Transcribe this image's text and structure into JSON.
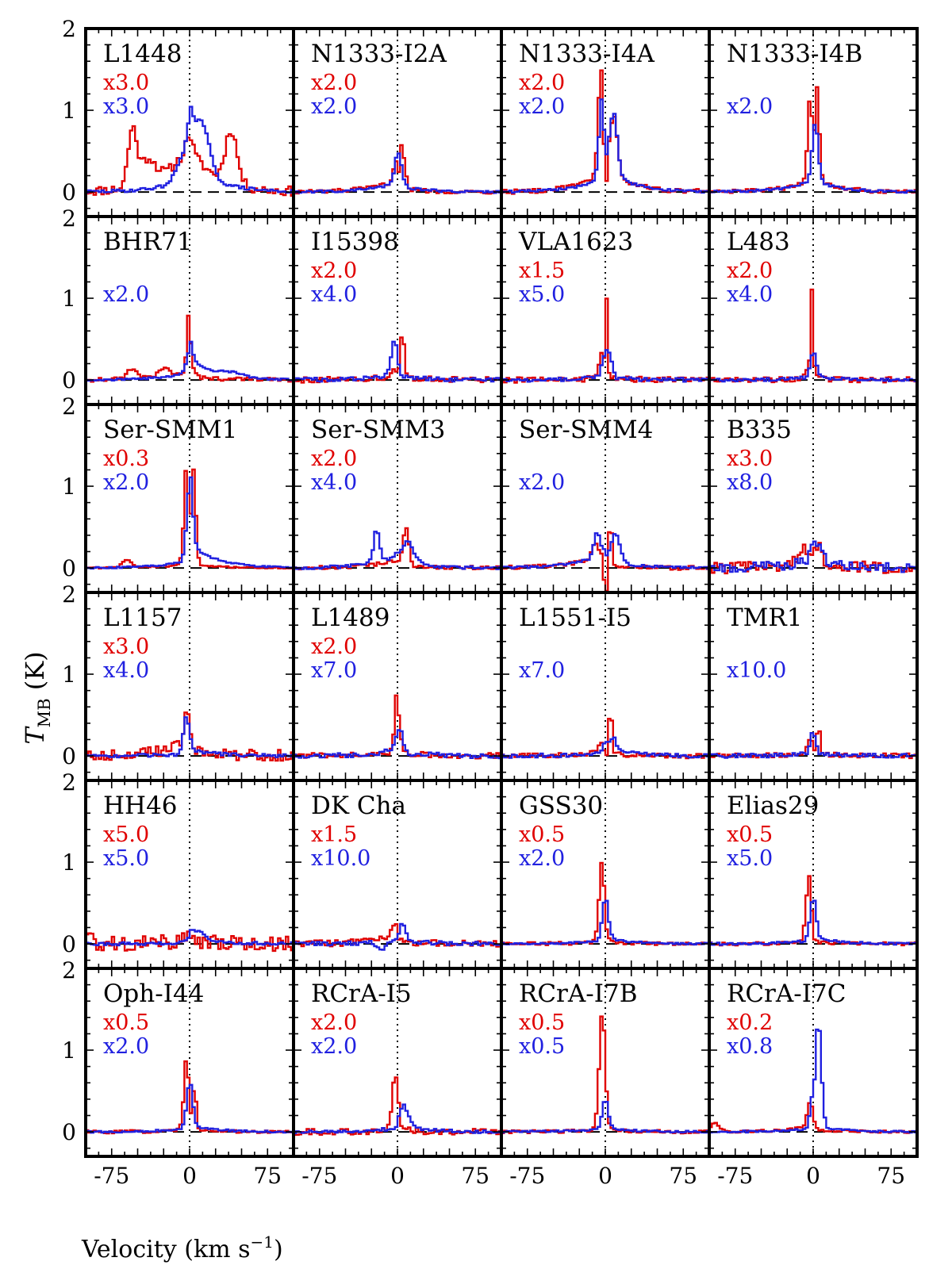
{
  "chart_data": {
    "type": "line",
    "layout": "6x4 grid of step-line spectra",
    "xlabel": "Velocity (km s",
    "xlabel_sup": "−1",
    "xlabel_tail": ")",
    "ylabel_main": "T",
    "ylabel_sub": "MB",
    "ylabel_tail": " (K)",
    "xlim": [
      -100,
      100
    ],
    "ylim": [
      -0.3,
      2.0
    ],
    "xticks": [
      -75,
      0,
      75
    ],
    "xtick_labels": [
      "-75",
      "0",
      "75"
    ],
    "yticks": [
      0,
      1,
      2
    ],
    "ytick_labels": [
      "0",
      "1",
      "2"
    ],
    "series_colors": {
      "red": "#e00000",
      "blue": "#2020e0"
    },
    "panels": [
      {
        "name": "L1448",
        "red_scale": "x3.0",
        "blue_scale": "x3.0",
        "red": {
          "core": 0.15,
          "core_v": 0,
          "wing_l": 0.6,
          "wing_r": 0.55,
          "peaks": [
            [
              -55,
              0.7,
              6
            ],
            [
              40,
              0.65,
              8
            ],
            [
              -40,
              0.3,
              10
            ]
          ],
          "noise": 0.06,
          "dip": 0
        },
        "blue": {
          "core": 0.3,
          "core_v": 0,
          "wing_l": 0.2,
          "wing_r": 0.4,
          "peaks": [
            [
              12,
              0.6,
              10
            ],
            [
              -5,
              0.3,
              10
            ]
          ],
          "noise": 0.02,
          "dip": 0
        }
      },
      {
        "name": "N1333-I2A",
        "red_scale": "x2.0",
        "blue_scale": "x2.0",
        "red": {
          "core": 0.55,
          "core_v": 4,
          "wing_l": 0.15,
          "wing_r": 0.05,
          "peaks": [
            [
              -2,
              0.35,
              2
            ]
          ],
          "noise": 0.025,
          "dip": 0.3
        },
        "blue": {
          "core": 0.3,
          "core_v": 0,
          "wing_l": 0.12,
          "wing_r": 0.08,
          "peaks": [
            [
              3,
              0.15,
              4
            ]
          ],
          "noise": 0.015,
          "dip": 0
        }
      },
      {
        "name": "N1333-I4A",
        "red_scale": "x2.0",
        "blue_scale": "x2.0",
        "red": {
          "core": 1.3,
          "core_v": -4,
          "wing_l": 0.25,
          "wing_r": 0.3,
          "peaks": [
            [
              8,
              0.7,
              5
            ]
          ],
          "noise": 0.03,
          "dip": 0.9
        },
        "blue": {
          "core": 1.0,
          "core_v": -3,
          "wing_l": 0.2,
          "wing_r": 0.3,
          "peaks": [
            [
              8,
              0.75,
              5
            ]
          ],
          "noise": 0.015,
          "dip": 0.5
        }
      },
      {
        "name": "N1333-I4B",
        "red_scale": "",
        "blue_scale": "x2.0",
        "red": {
          "core": 1.2,
          "core_v": -2,
          "wing_l": 0.15,
          "wing_r": 0.15,
          "peaks": [
            [
              4,
              1.0,
              3
            ]
          ],
          "noise": 0.025,
          "dip": 0.8
        },
        "blue": {
          "core": 0.7,
          "core_v": 2,
          "wing_l": 0.15,
          "wing_r": 0.15,
          "peaks": [],
          "noise": 0.015,
          "dip": 0
        }
      },
      {
        "name": "BHR71",
        "red_scale": "",
        "blue_scale": "x2.0",
        "red": {
          "core": 0.3,
          "core_v": 0,
          "wing_l": 0.1,
          "wing_r": 0.05,
          "peaks": [
            [
              -1,
              0.45,
              2
            ],
            [
              -55,
              0.12,
              8
            ],
            [
              -25,
              0.1,
              8
            ]
          ],
          "noise": 0.025,
          "dip": 0
        },
        "blue": {
          "core": 0.25,
          "core_v": 0,
          "wing_l": 0.1,
          "wing_r": 0.25,
          "peaks": [
            [
              40,
              0.05,
              15
            ]
          ],
          "noise": 0.012,
          "dip": 0
        }
      },
      {
        "name": "I15398",
        "red_scale": "x2.0",
        "blue_scale": "x4.0",
        "red": {
          "core": 0.2,
          "core_v": 0,
          "wing_l": 0.05,
          "wing_r": 0.05,
          "peaks": [
            [
              5,
              0.6,
              2
            ]
          ],
          "noise": 0.035,
          "dip": 0.2
        },
        "blue": {
          "core": 0.4,
          "core_v": -3,
          "wing_l": 0.08,
          "wing_r": 0.05,
          "peaks": [],
          "noise": 0.025,
          "dip": 0
        }
      },
      {
        "name": "VLA1623",
        "red_scale": "x1.5",
        "blue_scale": "x5.0",
        "red": {
          "core": 0.3,
          "core_v": -3,
          "wing_l": 0.03,
          "wing_r": 0.03,
          "peaks": [
            [
              1,
              1.0,
              1.5
            ]
          ],
          "noise": 0.035,
          "dip": 0.2
        },
        "blue": {
          "core": 0.3,
          "core_v": 0,
          "wing_l": 0.04,
          "wing_r": 0.04,
          "peaks": [
            [
              5,
              0.2,
              3
            ]
          ],
          "noise": 0.025,
          "dip": 0
        }
      },
      {
        "name": "L483",
        "red_scale": "x2.0",
        "blue_scale": "x4.0",
        "red": {
          "core": 0.15,
          "core_v": -4,
          "wing_l": 0.03,
          "wing_r": 0.03,
          "peaks": [
            [
              -1,
              1.0,
              1.5
            ]
          ],
          "noise": 0.035,
          "dip": 0
        },
        "blue": {
          "core": 0.3,
          "core_v": 0,
          "wing_l": 0.04,
          "wing_r": 0.04,
          "peaks": [],
          "noise": 0.02,
          "dip": 0
        }
      },
      {
        "name": "Ser-SMM1",
        "red_scale": "x0.3",
        "blue_scale": "x2.0",
        "red": {
          "core": 1.4,
          "core_v": -2,
          "wing_l": 0.05,
          "wing_r": 0.05,
          "peaks": [
            [
              -60,
              0.1,
              6
            ],
            [
              4,
              1.0,
              3
            ]
          ],
          "noise": 0.01,
          "dip": 1.0
        },
        "blue": {
          "core": 0.9,
          "core_v": 0,
          "wing_l": 0.1,
          "wing_r": 0.3,
          "peaks": [],
          "noise": 0.01,
          "dip": 0
        }
      },
      {
        "name": "Ser-SMM3",
        "red_scale": "x2.0",
        "blue_scale": "x4.0",
        "red": {
          "core": 0.45,
          "core_v": 8,
          "wing_l": 0.1,
          "wing_r": 0.05,
          "peaks": [],
          "noise": 0.025,
          "dip": 0
        },
        "blue": {
          "core": 0.4,
          "core_v": -20,
          "wing_l": 0.15,
          "wing_r": 0.1,
          "peaks": [
            [
              10,
              0.25,
              8
            ]
          ],
          "noise": 0.02,
          "dip": 0
        }
      },
      {
        "name": "Ser-SMM4",
        "red_scale": "",
        "blue_scale": "x2.0",
        "red": {
          "core": 0.15,
          "core_v": -10,
          "wing_l": 0.2,
          "wing_r": 0.03,
          "peaks": [
            [
              5,
              0.8,
              1.5
            ]
          ],
          "noise": 0.025,
          "dip": 0.6
        },
        "blue": {
          "core": 0.3,
          "core_v": -8,
          "wing_l": 0.2,
          "wing_r": 0.1,
          "peaks": [
            [
              10,
              0.35,
              6
            ]
          ],
          "noise": 0.015,
          "dip": 0
        }
      },
      {
        "name": "B335",
        "red_scale": "x3.0",
        "blue_scale": "x8.0",
        "red": {
          "core": 0.2,
          "core_v": 5,
          "wing_l": 0.1,
          "wing_r": 0.1,
          "peaks": [
            [
              -10,
              0.15,
              8
            ]
          ],
          "noise": 0.07,
          "dip": 0
        },
        "blue": {
          "core": 0.2,
          "core_v": 0,
          "wing_l": 0.1,
          "wing_r": 0.1,
          "peaks": [
            [
              5,
              0.15,
              6
            ]
          ],
          "noise": 0.06,
          "dip": 0
        }
      },
      {
        "name": "L1157",
        "red_scale": "x3.0",
        "blue_scale": "x4.0",
        "red": {
          "core": 0.35,
          "core_v": -3,
          "wing_l": 0.2,
          "wing_r": 0.1,
          "peaks": [],
          "noise": 0.07,
          "dip": 0
        },
        "blue": {
          "core": 0.45,
          "core_v": -3,
          "wing_l": 0.03,
          "wing_r": 0.08,
          "peaks": [],
          "noise": 0.02,
          "dip": 0
        }
      },
      {
        "name": "L1489",
        "red_scale": "x2.0",
        "blue_scale": "x7.0",
        "red": {
          "core": 0.35,
          "core_v": 0,
          "wing_l": 0.05,
          "wing_r": 0.05,
          "peaks": [
            [
              -1,
              0.35,
              2
            ]
          ],
          "noise": 0.035,
          "dip": 0
        },
        "blue": {
          "core": 0.3,
          "core_v": 2,
          "wing_l": 0.08,
          "wing_r": 0.05,
          "peaks": [],
          "noise": 0.03,
          "dip": 0
        }
      },
      {
        "name": "L1551-I5",
        "red_scale": "",
        "blue_scale": "x7.0",
        "red": {
          "core": 0.1,
          "core_v": -5,
          "wing_l": 0.05,
          "wing_r": 0.03,
          "peaks": [
            [
              5,
              0.8,
              1.5
            ]
          ],
          "noise": 0.03,
          "dip": 0
        },
        "blue": {
          "core": 0.1,
          "core_v": 0,
          "wing_l": 0.05,
          "wing_r": 0.1,
          "peaks": [
            [
              8,
              0.15,
              3
            ]
          ],
          "noise": 0.025,
          "dip": 0
        }
      },
      {
        "name": "TMR1",
        "red_scale": "",
        "blue_scale": "x10.0",
        "red": {
          "core": 0.2,
          "core_v": -3,
          "wing_l": 0.03,
          "wing_r": 0.03,
          "peaks": [
            [
              5,
              0.5,
              1.5
            ]
          ],
          "noise": 0.03,
          "dip": 0
        },
        "blue": {
          "core": 0.25,
          "core_v": 0,
          "wing_l": 0.03,
          "wing_r": 0.03,
          "peaks": [],
          "noise": 0.025,
          "dip": 0
        }
      },
      {
        "name": "HH46",
        "red_scale": "x5.0",
        "blue_scale": "x5.0",
        "red": {
          "core": 0.1,
          "core_v": 0,
          "wing_l": 0.05,
          "wing_r": 0.05,
          "peaks": [
            [
              -95,
              0.25,
              3
            ]
          ],
          "noise": 0.09,
          "dip": 0
        },
        "blue": {
          "core": 0.05,
          "core_v": 0,
          "wing_l": 0.02,
          "wing_r": 0.1,
          "peaks": [
            [
              8,
              0.08,
              8
            ]
          ],
          "noise": 0.02,
          "dip": 0
        }
      },
      {
        "name": "DK Cha",
        "red_scale": "x1.5",
        "blue_scale": "x10.0",
        "red": {
          "core": 0.15,
          "core_v": -3,
          "wing_l": 0.1,
          "wing_r": 0.03,
          "peaks": [],
          "noise": 0.04,
          "dip": 0
        },
        "blue": {
          "core": 0.2,
          "core_v": 5,
          "wing_l": 0.05,
          "wing_r": 0.05,
          "peaks": [
            [
              -15,
              -0.12,
              6
            ]
          ],
          "noise": 0.025,
          "dip": 0
        }
      },
      {
        "name": "GSS30",
        "red_scale": "x0.5",
        "blue_scale": "x2.0",
        "red": {
          "core": 1.0,
          "core_v": -3,
          "wing_l": 0.03,
          "wing_r": 0.03,
          "peaks": [],
          "noise": 0.02,
          "dip": 0.3
        },
        "blue": {
          "core": 0.5,
          "core_v": 0,
          "wing_l": 0.05,
          "wing_r": 0.08,
          "peaks": [],
          "noise": 0.012,
          "dip": 0
        }
      },
      {
        "name": "Elias29",
        "red_scale": "x0.5",
        "blue_scale": "x5.0",
        "red": {
          "core": 0.8,
          "core_v": -4,
          "wing_l": 0.03,
          "wing_r": 0.03,
          "peaks": [],
          "noise": 0.02,
          "dip": 0.2
        },
        "blue": {
          "core": 0.5,
          "core_v": 0,
          "wing_l": 0.05,
          "wing_r": 0.08,
          "peaks": [],
          "noise": 0.015,
          "dip": 0
        }
      },
      {
        "name": "Oph-I44",
        "red_scale": "x0.5",
        "blue_scale": "x2.0",
        "red": {
          "core": 1.0,
          "core_v": -2,
          "wing_l": 0.03,
          "wing_r": 0.03,
          "peaks": [
            [
              5,
              0.5,
              2
            ]
          ],
          "noise": 0.02,
          "dip": 0.6
        },
        "blue": {
          "core": 0.55,
          "core_v": 0,
          "wing_l": 0.05,
          "wing_r": 0.08,
          "peaks": [],
          "noise": 0.012,
          "dip": 0
        }
      },
      {
        "name": "RCrA-I5",
        "red_scale": "x2.0",
        "blue_scale": "x2.0",
        "red": {
          "core": 0.65,
          "core_v": -2,
          "wing_l": 0.03,
          "wing_r": 0.03,
          "peaks": [],
          "noise": 0.04,
          "dip": 0
        },
        "blue": {
          "core": 0.2,
          "core_v": 5,
          "wing_l": 0.05,
          "wing_r": 0.1,
          "peaks": [
            [
              10,
              0.1,
              6
            ]
          ],
          "noise": 0.02,
          "dip": 0
        }
      },
      {
        "name": "RCrA-I7B",
        "red_scale": "x0.5",
        "blue_scale": "x0.5",
        "red": {
          "core": 1.45,
          "core_v": -3,
          "wing_l": 0.03,
          "wing_r": 0.03,
          "peaks": [],
          "noise": 0.02,
          "dip": 0
        },
        "blue": {
          "core": 0.35,
          "core_v": 0,
          "wing_l": 0.05,
          "wing_r": 0.05,
          "peaks": [],
          "noise": 0.012,
          "dip": 0
        }
      },
      {
        "name": "RCrA-I7C",
        "red_scale": "x0.2",
        "blue_scale": "x0.8",
        "red": {
          "core": 0.3,
          "core_v": -3,
          "wing_l": 0.08,
          "wing_r": 0.03,
          "peaks": [
            [
              -95,
              0.1,
              6
            ]
          ],
          "noise": 0.015,
          "dip": 0
        },
        "blue": {
          "core": 1.3,
          "core_v": 5,
          "wing_l": 0.05,
          "wing_r": 0.08,
          "peaks": [
            [
              -2,
              0.3,
              2
            ]
          ],
          "noise": 0.012,
          "dip": 0
        }
      }
    ]
  }
}
